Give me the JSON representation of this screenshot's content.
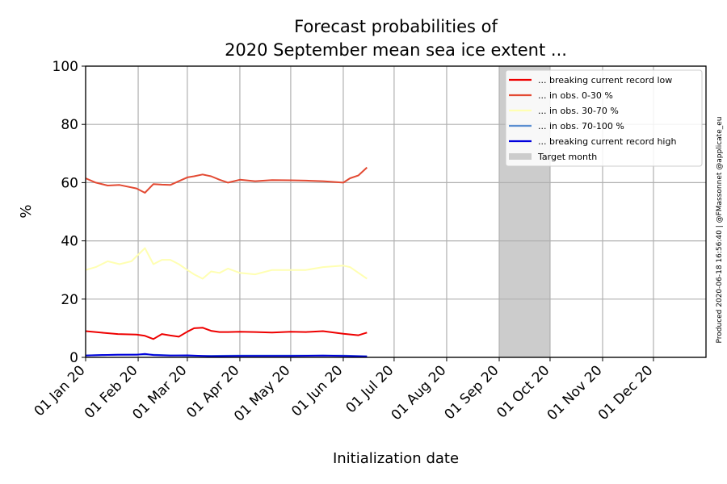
{
  "chart_data": {
    "type": "line",
    "title_line1": "Forecast probabilities of",
    "title_line2": "2020 September mean sea ice extent ...",
    "xlabel": "Initialization date",
    "ylabel": "%",
    "ylim": [
      0,
      100
    ],
    "xlim": [
      "2020-01-01",
      "2021-01-01"
    ],
    "yticks": [
      0,
      20,
      40,
      60,
      80,
      100
    ],
    "xticks": [
      {
        "date": "2020-01-01",
        "label": "01 Jan 20"
      },
      {
        "date": "2020-02-01",
        "label": "01 Feb 20"
      },
      {
        "date": "2020-03-01",
        "label": "01 Mar 20"
      },
      {
        "date": "2020-04-01",
        "label": "01 Apr 20"
      },
      {
        "date": "2020-05-01",
        "label": "01 May 20"
      },
      {
        "date": "2020-06-01",
        "label": "01 Jun 20"
      },
      {
        "date": "2020-07-01",
        "label": "01 Jul 20"
      },
      {
        "date": "2020-08-01",
        "label": "01 Aug 20"
      },
      {
        "date": "2020-09-01",
        "label": "01 Sep 20"
      },
      {
        "date": "2020-10-01",
        "label": "01 Oct 20"
      },
      {
        "date": "2020-11-01",
        "label": "01 Nov 20"
      },
      {
        "date": "2020-12-01",
        "label": "01 Dec 20"
      }
    ],
    "grid": true,
    "legend_position": "top-right",
    "target_month": {
      "name": "Target month",
      "start": "2020-09-01",
      "end": "2020-10-01",
      "color": "#cccccc"
    },
    "series": [
      {
        "name": "... breaking current record low",
        "color": "#ee0000",
        "x": [
          "2020-01-01",
          "2020-01-10",
          "2020-01-20",
          "2020-01-31",
          "2020-02-05",
          "2020-02-10",
          "2020-02-15",
          "2020-02-20",
          "2020-02-25",
          "2020-03-01",
          "2020-03-05",
          "2020-03-10",
          "2020-03-15",
          "2020-03-20",
          "2020-03-25",
          "2020-04-01",
          "2020-04-10",
          "2020-04-20",
          "2020-05-01",
          "2020-05-10",
          "2020-05-20",
          "2020-06-01",
          "2020-06-10",
          "2020-06-15"
        ],
        "y": [
          9.0,
          8.5,
          8.0,
          7.8,
          7.4,
          6.3,
          8.0,
          7.5,
          7.1,
          8.8,
          10.0,
          10.2,
          9.1,
          8.7,
          8.7,
          8.8,
          8.7,
          8.5,
          8.8,
          8.7,
          9.0,
          8.1,
          7.6,
          8.5
        ]
      },
      {
        "name": "... in obs. 0-30 %",
        "color": "#e34a33",
        "x": [
          "2020-01-01",
          "2020-01-07",
          "2020-01-14",
          "2020-01-21",
          "2020-01-31",
          "2020-02-05",
          "2020-02-10",
          "2020-02-15",
          "2020-02-20",
          "2020-02-25",
          "2020-03-01",
          "2020-03-05",
          "2020-03-10",
          "2020-03-15",
          "2020-03-20",
          "2020-03-25",
          "2020-04-01",
          "2020-04-10",
          "2020-04-20",
          "2020-05-01",
          "2020-05-10",
          "2020-05-20",
          "2020-06-01",
          "2020-06-05",
          "2020-06-10",
          "2020-06-15"
        ],
        "y": [
          61.5,
          60.0,
          59.0,
          59.2,
          58.0,
          56.5,
          59.5,
          59.3,
          59.2,
          60.5,
          61.8,
          62.2,
          62.8,
          62.2,
          61.0,
          60.0,
          61.0,
          60.5,
          60.9,
          60.8,
          60.7,
          60.5,
          60.0,
          61.5,
          62.5,
          65.2
        ]
      },
      {
        "name": "... in obs. 30-70 %",
        "color": "#ffffb2",
        "x": [
          "2020-01-01",
          "2020-01-07",
          "2020-01-14",
          "2020-01-21",
          "2020-01-28",
          "2020-02-05",
          "2020-02-10",
          "2020-02-15",
          "2020-02-20",
          "2020-02-25",
          "2020-03-01",
          "2020-03-05",
          "2020-03-10",
          "2020-03-15",
          "2020-03-20",
          "2020-03-25",
          "2020-04-01",
          "2020-04-10",
          "2020-04-20",
          "2020-05-01",
          "2020-05-10",
          "2020-05-20",
          "2020-06-01",
          "2020-06-05",
          "2020-06-10",
          "2020-06-15"
        ],
        "y": [
          30.0,
          31.0,
          33.0,
          32.0,
          33.0,
          37.5,
          32.0,
          33.5,
          33.5,
          32.0,
          30.0,
          28.5,
          27.0,
          29.5,
          29.0,
          30.5,
          29.0,
          28.5,
          30.0,
          30.0,
          30.0,
          31.0,
          31.5,
          31.0,
          29.0,
          27.0
        ]
      },
      {
        "name": "... in obs. 70-100 %",
        "color": "#5b8fd1",
        "x": [
          "2020-01-01",
          "2020-01-20",
          "2020-02-05",
          "2020-02-20",
          "2020-03-10",
          "2020-04-01",
          "2020-05-01",
          "2020-06-01",
          "2020-06-15"
        ],
        "y": [
          0.7,
          0.9,
          1.0,
          0.7,
          0.5,
          0.6,
          0.6,
          0.6,
          0.4
        ]
      },
      {
        "name": "... breaking current record high",
        "color": "#0000dd",
        "x": [
          "2020-01-01",
          "2020-01-10",
          "2020-01-20",
          "2020-01-31",
          "2020-02-05",
          "2020-02-10",
          "2020-02-20",
          "2020-03-01",
          "2020-03-15",
          "2020-04-01",
          "2020-04-20",
          "2020-05-01",
          "2020-05-20",
          "2020-06-01",
          "2020-06-15"
        ],
        "y": [
          0.6,
          0.8,
          0.9,
          0.9,
          1.2,
          0.8,
          0.6,
          0.7,
          0.4,
          0.5,
          0.5,
          0.5,
          0.6,
          0.5,
          0.3
        ]
      }
    ],
    "credit": "Produced 2020-06-18 16:56:40 | @FMassonnet @applicate_eu"
  }
}
